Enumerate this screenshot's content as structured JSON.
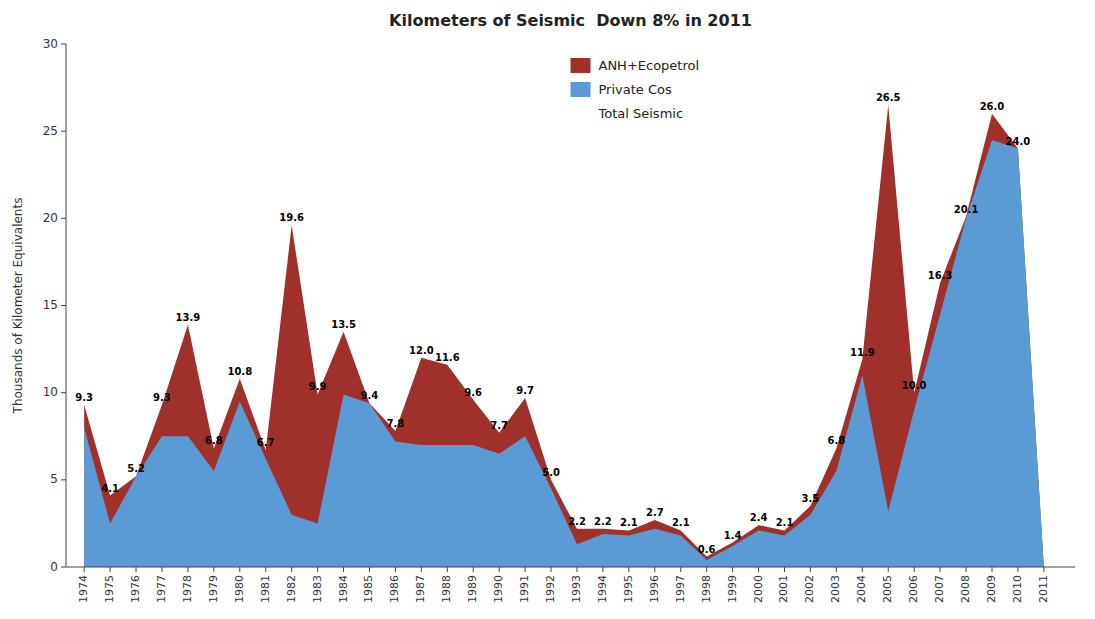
{
  "chart_data": {
    "type": "area",
    "title": "Kilometers of Seismic  Down 8% in 2011",
    "y_label": "Thousands of Kilometer Equivalents",
    "x": [
      1974,
      1975,
      1976,
      1977,
      1978,
      1979,
      1980,
      1981,
      1982,
      1983,
      1984,
      1985,
      1986,
      1987,
      1988,
      1989,
      1990,
      1991,
      1992,
      1993,
      1994,
      1995,
      1996,
      1997,
      1998,
      1999,
      2000,
      2001,
      2002,
      2003,
      2004,
      2005,
      2006,
      2007,
      2008,
      2009,
      2010,
      2011
    ],
    "series": [
      {
        "name": "ANH+Ecopetrol",
        "type": "area",
        "color": "#A0312A",
        "values": [
          9.3,
          4.1,
          5.2,
          9.3,
          13.9,
          6.8,
          10.8,
          6.7,
          19.6,
          9.9,
          13.5,
          9.4,
          7.8,
          12.0,
          11.6,
          9.6,
          7.7,
          9.7,
          5.0,
          2.2,
          2.2,
          2.1,
          2.7,
          2.1,
          0.6,
          1.4,
          2.4,
          2.1,
          3.5,
          6.8,
          11.9,
          26.5,
          10.0,
          16.3,
          20.1,
          26.0,
          24.0,
          0.0
        ]
      },
      {
        "name": "Private Cos",
        "type": "area",
        "color": "#5B9BD5",
        "values": [
          8.0,
          2.5,
          5.2,
          7.5,
          7.5,
          5.5,
          9.5,
          6.2,
          3.0,
          2.5,
          9.9,
          9.4,
          7.2,
          7.0,
          7.0,
          7.0,
          6.5,
          7.5,
          4.5,
          1.3,
          1.9,
          1.8,
          2.2,
          1.8,
          0.4,
          1.2,
          2.1,
          1.8,
          3.0,
          5.5,
          11.0,
          3.2,
          9.0,
          14.5,
          20.0,
          24.5,
          24.0,
          0.0
        ]
      },
      {
        "name": "Total Seismic",
        "type": "text",
        "color": "#ffffff",
        "data_labels": true,
        "values": [
          9.3,
          4.1,
          5.2,
          9.3,
          13.9,
          6.8,
          10.8,
          6.7,
          19.6,
          9.9,
          13.5,
          9.4,
          7.8,
          12.0,
          11.6,
          9.6,
          7.7,
          9.7,
          5.0,
          2.2,
          2.2,
          2.1,
          2.7,
          2.1,
          0.6,
          1.4,
          2.4,
          2.1,
          3.5,
          6.8,
          11.9,
          26.5,
          10.0,
          16.3,
          20.1,
          26.0,
          24.0,
          null
        ],
        "value_labels": [
          "9.3",
          "4.1",
          "5.2",
          "9.3",
          "13.9",
          "6.8",
          "10.8",
          "6.7",
          "19.6",
          "9.9",
          "13.5",
          "9.4",
          "7.8",
          "12.0",
          "11.6",
          "9.6",
          "7.7",
          "9.7",
          "5.0",
          "2.2",
          "2.2",
          "2.1",
          "2.7",
          "2.1",
          "0.6",
          "1.4",
          "2.4",
          "2.1",
          "3.5",
          "6.8",
          "11.9",
          "26.5",
          "10.0",
          "16.3",
          "20.1",
          "26.0",
          "24.0",
          null
        ]
      }
    ],
    "xlim": [
      1973.3,
      2012.2
    ],
    "xticks": [
      1974,
      1975,
      1976,
      1977,
      1978,
      1979,
      1980,
      1981,
      1982,
      1983,
      1984,
      1985,
      1986,
      1987,
      1988,
      1989,
      1990,
      1991,
      1992,
      1993,
      1994,
      1995,
      1996,
      1997,
      1998,
      1999,
      2000,
      2001,
      2002,
      2003,
      2004,
      2005,
      2006,
      2007,
      2008,
      2009,
      2010,
      2011
    ],
    "ylim": [
      0,
      30
    ],
    "yticks": [
      0,
      5,
      10,
      15,
      20,
      25,
      30
    ],
    "grid": false,
    "legend": "upper center"
  }
}
